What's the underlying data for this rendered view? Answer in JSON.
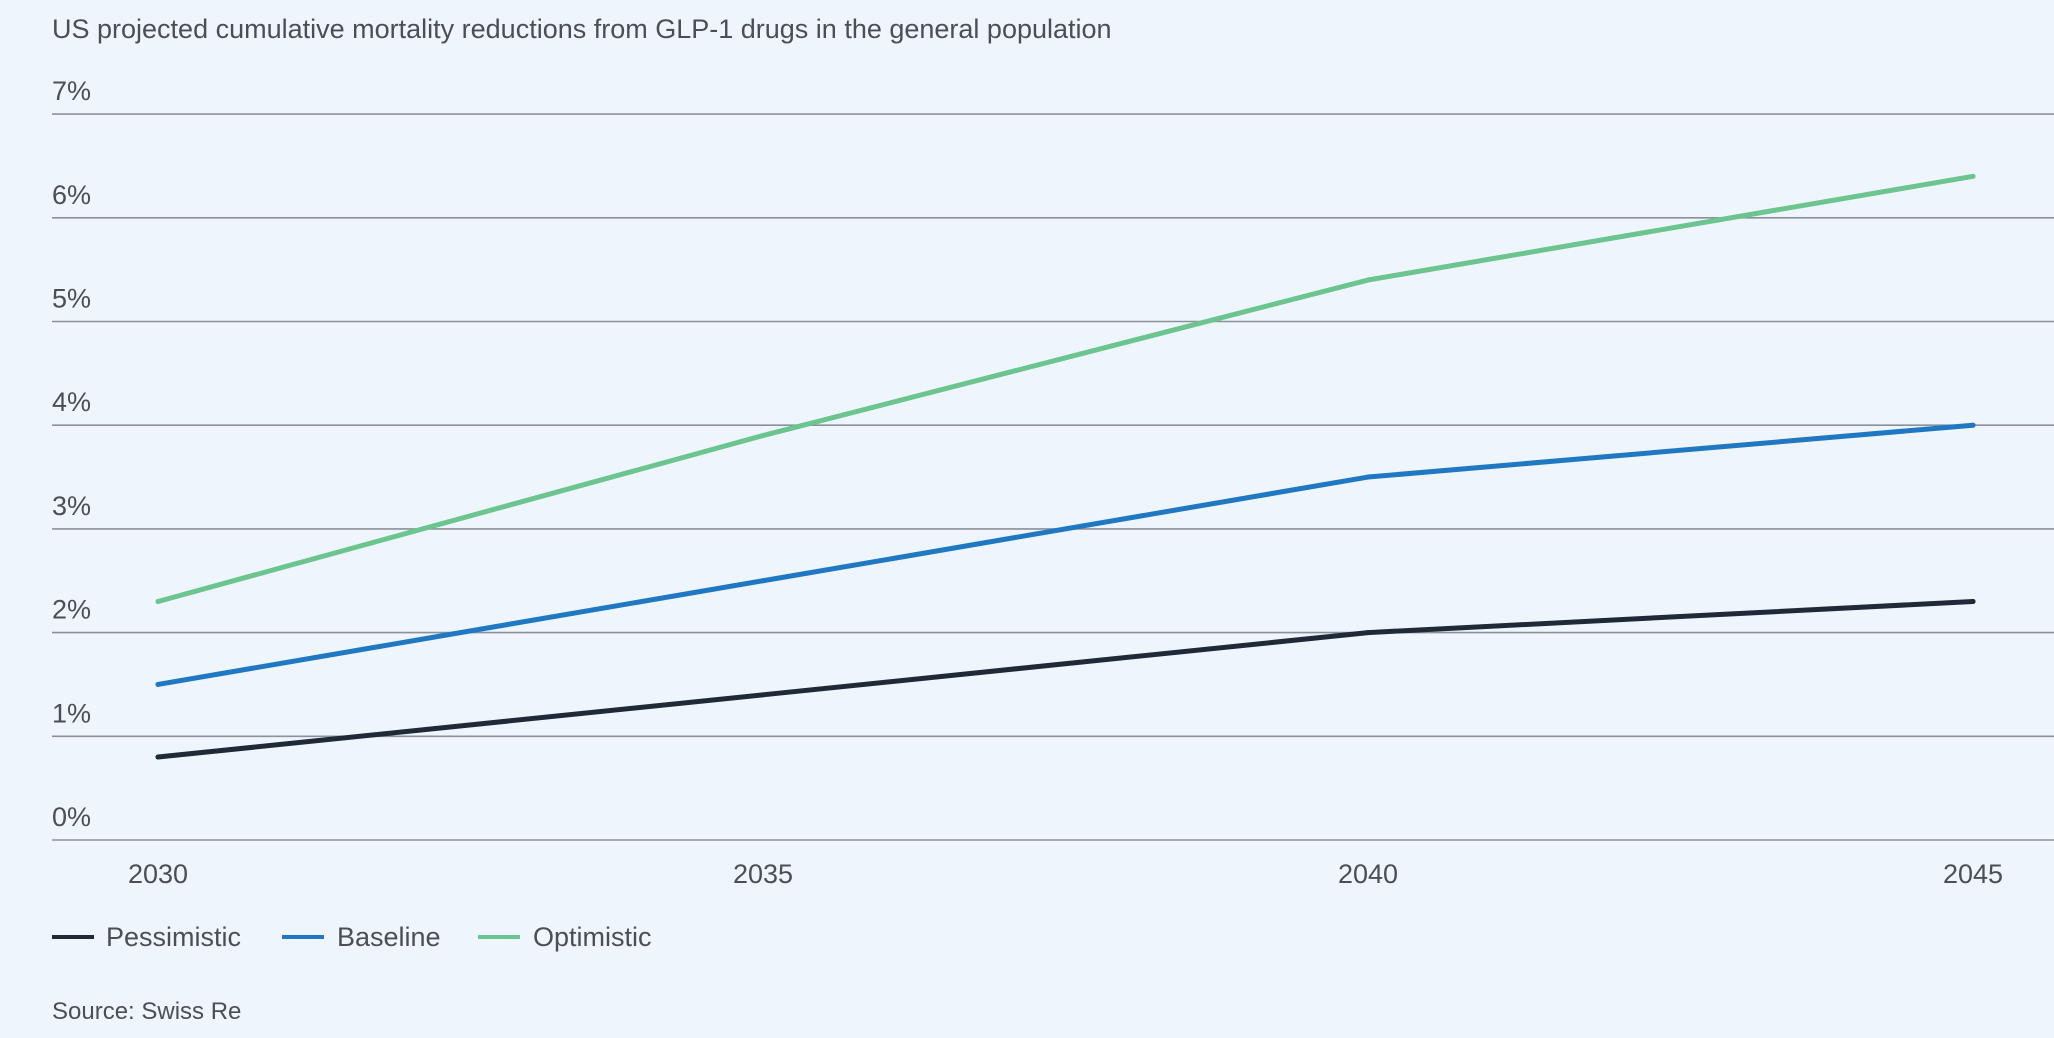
{
  "chart_data": {
    "type": "line",
    "title": "US projected cumulative mortality reductions from GLP-1 drugs in the general population",
    "x": [
      2030,
      2035,
      2040,
      2045
    ],
    "x_tick_labels": [
      "2030",
      "2035",
      "2040",
      "2045"
    ],
    "y_tick_labels": [
      "0%",
      "1%",
      "2%",
      "3%",
      "4%",
      "5%",
      "6%",
      "7%"
    ],
    "ylim": [
      0,
      7
    ],
    "y_unit": "%",
    "grid": "horizontal",
    "legend_position": "bottom-left",
    "series": [
      {
        "name": "Pessimistic",
        "color": "#1f2a38",
        "values": [
          0.8,
          1.4,
          2.0,
          2.3
        ]
      },
      {
        "name": "Baseline",
        "color": "#1f78c1",
        "values": [
          1.5,
          2.5,
          3.5,
          4.0
        ]
      },
      {
        "name": "Optimistic",
        "color": "#6cc48f",
        "values": [
          2.3,
          3.9,
          5.4,
          6.4
        ]
      }
    ],
    "source": "Source: Swiss Re"
  }
}
